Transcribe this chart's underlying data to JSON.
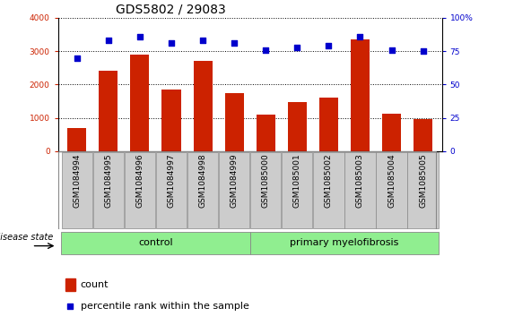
{
  "title": "GDS5802 / 29083",
  "samples": [
    "GSM1084994",
    "GSM1084995",
    "GSM1084996",
    "GSM1084997",
    "GSM1084998",
    "GSM1084999",
    "GSM1085000",
    "GSM1085001",
    "GSM1085002",
    "GSM1085003",
    "GSM1085004",
    "GSM1085005"
  ],
  "counts": [
    700,
    2400,
    2900,
    1850,
    2700,
    1750,
    1100,
    1460,
    1620,
    3350,
    1130,
    960
  ],
  "percentiles": [
    70,
    83,
    86,
    81,
    83,
    81,
    76,
    78,
    79,
    86,
    76,
    75
  ],
  "groups": [
    {
      "label": "control",
      "start": 0,
      "end": 5
    },
    {
      "label": "primary myelofibrosis",
      "start": 6,
      "end": 11
    }
  ],
  "bar_color": "#CC2200",
  "dot_color": "#0000CC",
  "green_color": "#90EE90",
  "gray_tick_color": "#CCCCCC",
  "ylim_left": [
    0,
    4000
  ],
  "ylim_right": [
    0,
    100
  ],
  "yticks_left": [
    0,
    1000,
    2000,
    3000,
    4000
  ],
  "yticks_right": [
    0,
    25,
    50,
    75,
    100
  ],
  "disease_state_label": "disease state",
  "legend_count_label": "count",
  "legend_pct_label": "percentile rank within the sample",
  "title_fontsize": 10,
  "tick_fontsize": 6.5,
  "label_fontsize": 8,
  "group_label_fontsize": 8
}
